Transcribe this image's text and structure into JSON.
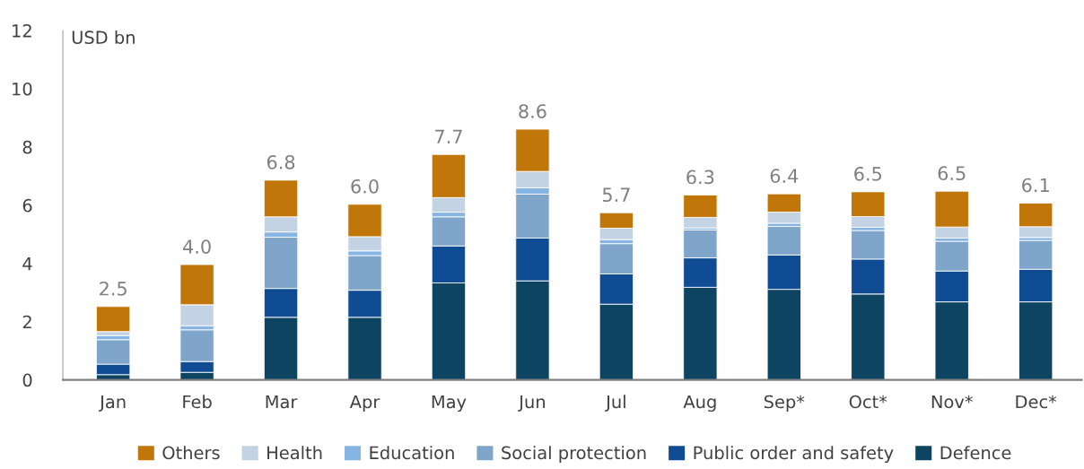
{
  "chart_data": {
    "type": "bar",
    "stacked": true,
    "ylabel": "USD bn",
    "categories": [
      "Jan",
      "Feb",
      "Mar",
      "Apr",
      "May",
      "Jun",
      "Jul",
      "Aug",
      "Sep*",
      "Oct*",
      "Nov*",
      "Dec*"
    ],
    "series": [
      {
        "name": "Defence",
        "color": "#0d4461",
        "values": [
          0.18,
          0.26,
          2.15,
          2.15,
          3.33,
          3.4,
          2.6,
          3.18,
          3.11,
          2.95,
          2.68,
          2.68
        ]
      },
      {
        "name": "Public order and safety",
        "color": "#104c94",
        "values": [
          0.36,
          0.37,
          0.99,
          0.93,
          1.27,
          1.47,
          1.04,
          1.01,
          1.18,
          1.2,
          1.06,
          1.12
        ]
      },
      {
        "name": "Social protection",
        "color": "#7fa6ca",
        "values": [
          0.84,
          1.09,
          1.76,
          1.19,
          1.0,
          1.51,
          1.04,
          0.96,
          0.98,
          0.98,
          1.02,
          0.99
        ]
      },
      {
        "name": "Education",
        "color": "#86b4e3",
        "values": [
          0.14,
          0.14,
          0.18,
          0.16,
          0.16,
          0.22,
          0.14,
          0.07,
          0.11,
          0.11,
          0.11,
          0.1
        ]
      },
      {
        "name": "Health",
        "color": "#c3d3e3",
        "values": [
          0.14,
          0.72,
          0.52,
          0.49,
          0.5,
          0.56,
          0.39,
          0.36,
          0.38,
          0.37,
          0.38,
          0.37
        ]
      },
      {
        "name": "Others",
        "color": "#c07608",
        "values": [
          0.86,
          1.38,
          1.26,
          1.11,
          1.48,
          1.45,
          0.53,
          0.77,
          0.63,
          0.85,
          1.23,
          0.81
        ]
      }
    ],
    "totals": [
      "2.5",
      "4.0",
      "6.8",
      "6.0",
      "7.7",
      "8.6",
      "5.7",
      "6.3",
      "6.4",
      "6.5",
      "6.5",
      "6.1"
    ],
    "ylim": [
      0,
      12
    ],
    "yticks": [
      0,
      2,
      4,
      6,
      8,
      10,
      12
    ],
    "grid": false,
    "legend": "bottom"
  }
}
